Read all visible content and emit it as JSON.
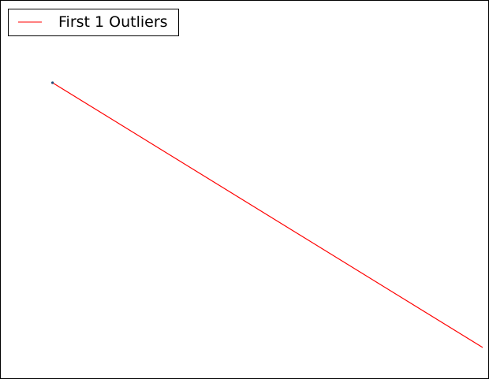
{
  "chart_data": {
    "type": "line",
    "title": "",
    "xlabel": "",
    "ylabel": "",
    "grid": false,
    "axes_visible": false,
    "legend_placement": "top-left",
    "xlim": [
      0,
      1
    ],
    "ylim": [
      0,
      1
    ],
    "series": [
      {
        "name": "First 1 Outliers",
        "color": "#ff0000",
        "x": [
          0.1,
          1.0
        ],
        "y": [
          0.84,
          0.0
        ]
      }
    ],
    "points": [
      {
        "color": "#1f4e79",
        "x": 0.1,
        "y": 0.84
      }
    ]
  }
}
